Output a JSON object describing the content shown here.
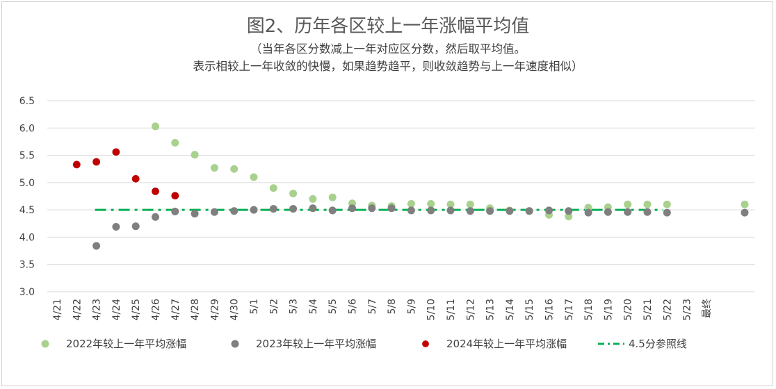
{
  "chart_data": {
    "type": "scatter",
    "title": "图2、历年各区较上一年涨幅平均值",
    "subtitle_lines": [
      "（当年各区分数减上一年对应区分数，然后取平均值。",
      "表示相较上一年收敛的快慢，如果趋势趋平，则收敛趋势与上一年速度相似）"
    ],
    "xlabel": "",
    "ylabel": "",
    "categories": [
      "4/21",
      "4/22",
      "4/23",
      "4/24",
      "4/25",
      "4/26",
      "4/27",
      "4/28",
      "4/29",
      "4/30",
      "5/1",
      "5/2",
      "5/3",
      "5/4",
      "5/5",
      "5/6",
      "5/7",
      "5/8",
      "5/9",
      "5/10",
      "5/11",
      "5/12",
      "5/13",
      "5/14",
      "5/15",
      "5/16",
      "5/17",
      "5/18",
      "5/19",
      "5/20",
      "5/21",
      "5/22",
      "5/23",
      "最终"
    ],
    "ylim": [
      3.0,
      6.5
    ],
    "yticks": [
      "3.0",
      "3.5",
      "4.0",
      "4.5",
      "5.0",
      "5.5",
      "6.0",
      "6.5"
    ],
    "grid": true,
    "legend_position": "bottom",
    "series": [
      {
        "name": "2022年较上一年平均涨幅",
        "color": "#a9d18e",
        "marker": "dot",
        "points": [
          {
            "x": "4/26",
            "y": 6.03
          },
          {
            "x": "4/27",
            "y": 5.73
          },
          {
            "x": "4/28",
            "y": 5.51
          },
          {
            "x": "4/29",
            "y": 5.27
          },
          {
            "x": "4/30",
            "y": 5.25
          },
          {
            "x": "5/1",
            "y": 5.1
          },
          {
            "x": "5/2",
            "y": 4.9
          },
          {
            "x": "5/3",
            "y": 4.8
          },
          {
            "x": "5/4",
            "y": 4.7
          },
          {
            "x": "5/5",
            "y": 4.73
          },
          {
            "x": "5/6",
            "y": 4.62
          },
          {
            "x": "5/7",
            "y": 4.58
          },
          {
            "x": "5/8",
            "y": 4.57
          },
          {
            "x": "5/9",
            "y": 4.61
          },
          {
            "x": "5/10",
            "y": 4.61
          },
          {
            "x": "5/11",
            "y": 4.6
          },
          {
            "x": "5/12",
            "y": 4.6
          },
          {
            "x": "5/13",
            "y": 4.53
          },
          {
            "x": "5/14",
            "y": 4.49
          },
          {
            "x": "5/15",
            "y": 4.48
          },
          {
            "x": "5/16",
            "y": 4.41
          },
          {
            "x": "5/17",
            "y": 4.38
          },
          {
            "x": "5/18",
            "y": 4.54
          },
          {
            "x": "5/19",
            "y": 4.55
          },
          {
            "x": "5/20",
            "y": 4.6
          },
          {
            "x": "5/21",
            "y": 4.6
          },
          {
            "x": "5/22",
            "y": 4.6
          },
          {
            "x": "最终",
            "y": 4.6
          }
        ]
      },
      {
        "name": "2023年较上一年平均涨幅",
        "color": "#7f7f7f",
        "marker": "dot",
        "points": [
          {
            "x": "4/23",
            "y": 3.84
          },
          {
            "x": "4/24",
            "y": 4.19
          },
          {
            "x": "4/25",
            "y": 4.2
          },
          {
            "x": "4/26",
            "y": 4.37
          },
          {
            "x": "4/27",
            "y": 4.47
          },
          {
            "x": "4/28",
            "y": 4.43
          },
          {
            "x": "4/29",
            "y": 4.46
          },
          {
            "x": "4/30",
            "y": 4.48
          },
          {
            "x": "5/1",
            "y": 4.5
          },
          {
            "x": "5/2",
            "y": 4.52
          },
          {
            "x": "5/3",
            "y": 4.52
          },
          {
            "x": "5/4",
            "y": 4.53
          },
          {
            "x": "5/5",
            "y": 4.49
          },
          {
            "x": "5/6",
            "y": 4.53
          },
          {
            "x": "5/7",
            "y": 4.53
          },
          {
            "x": "5/8",
            "y": 4.53
          },
          {
            "x": "5/9",
            "y": 4.49
          },
          {
            "x": "5/10",
            "y": 4.49
          },
          {
            "x": "5/11",
            "y": 4.49
          },
          {
            "x": "5/12",
            "y": 4.48
          },
          {
            "x": "5/13",
            "y": 4.48
          },
          {
            "x": "5/14",
            "y": 4.48
          },
          {
            "x": "5/15",
            "y": 4.48
          },
          {
            "x": "5/16",
            "y": 4.49
          },
          {
            "x": "5/17",
            "y": 4.48
          },
          {
            "x": "5/18",
            "y": 4.45
          },
          {
            "x": "5/19",
            "y": 4.46
          },
          {
            "x": "5/20",
            "y": 4.46
          },
          {
            "x": "5/21",
            "y": 4.46
          },
          {
            "x": "5/22",
            "y": 4.45
          },
          {
            "x": "最终",
            "y": 4.45
          }
        ]
      },
      {
        "name": "2024年较上一年平均涨幅",
        "color": "#c00000",
        "marker": "dot",
        "points": [
          {
            "x": "4/22",
            "y": 5.33
          },
          {
            "x": "4/23",
            "y": 5.38
          },
          {
            "x": "4/24",
            "y": 5.56
          },
          {
            "x": "4/25",
            "y": 5.07
          },
          {
            "x": "4/26",
            "y": 4.84
          },
          {
            "x": "4/27",
            "y": 4.76
          }
        ]
      },
      {
        "name": "4.5分参照线",
        "color": "#00b050",
        "marker": "dashdot",
        "value": 4.5,
        "x_from": "4/23",
        "x_to": "5/22"
      }
    ]
  }
}
